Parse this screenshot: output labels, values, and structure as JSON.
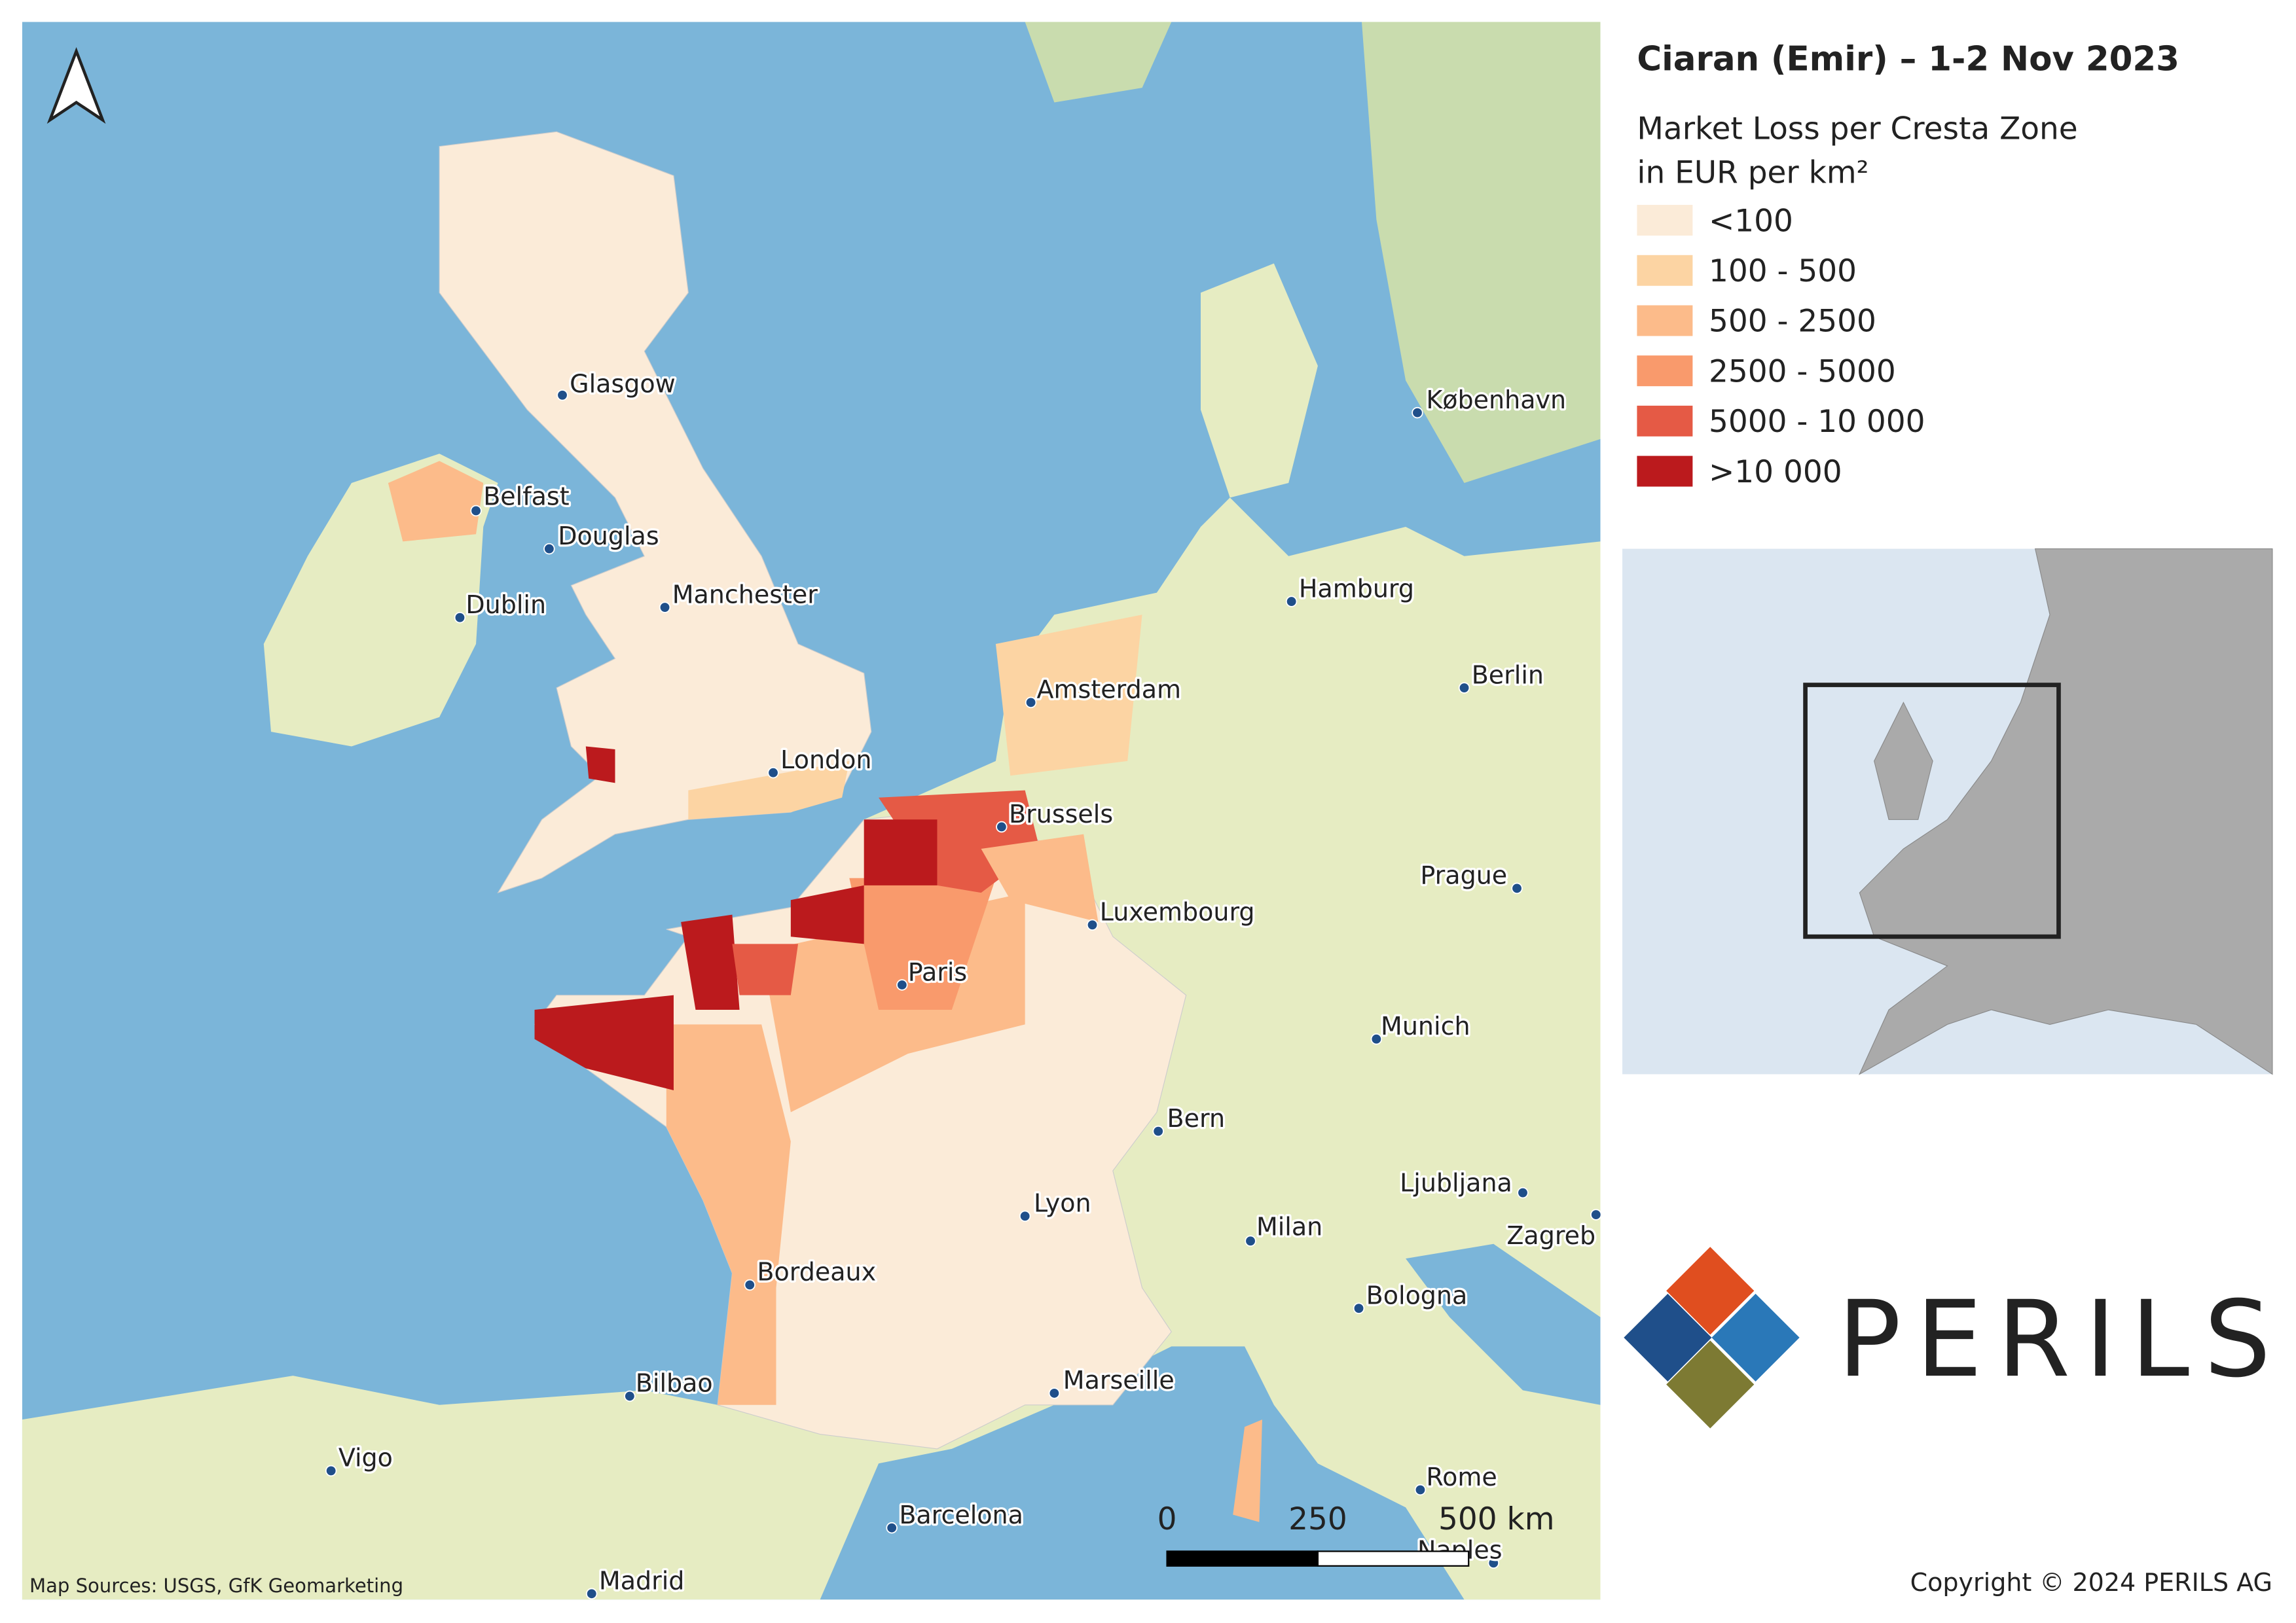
{
  "title": "Ciaran (Emir) – 1-2 Nov 2023",
  "legend": {
    "title_lines": [
      "Market Loss per Cresta Zone",
      "in EUR per km²"
    ],
    "items": [
      {
        "label": "<100",
        "color": "#fbebd8"
      },
      {
        "label": "100 - 500",
        "color": "#fcd4a3"
      },
      {
        "label": "500 - 2500",
        "color": "#fcbb8a"
      },
      {
        "label": "2500 - 5000",
        "color": "#f99a6c"
      },
      {
        "label": "5000 - 10 000",
        "color": "#e55a45"
      },
      {
        "label": ">10 000",
        "color": "#bb1a1d"
      }
    ]
  },
  "cities": [
    "Glasgow",
    "Belfast",
    "Douglas",
    "Dublin",
    "Manchester",
    "Amsterdam",
    "London",
    "Brussels",
    "Hamburg",
    "Berlin",
    "København",
    "Luxembourg",
    "Paris",
    "Prague",
    "Munich",
    "Bern",
    "Lyon",
    "Ljubljana",
    "Zagreb",
    "Milan",
    "Bordeaux",
    "Bologna",
    "Bilbao",
    "Marseille",
    "Vigo",
    "Rome",
    "Barcelona",
    "Naples",
    "Madrid"
  ],
  "scale_bar": [
    "0",
    "250",
    "500 km"
  ],
  "sources": "Map Sources: USGS, GfK Geomarketing",
  "logo": "PERILS",
  "copyright": "Copyright © 2024 PERILS AG"
}
